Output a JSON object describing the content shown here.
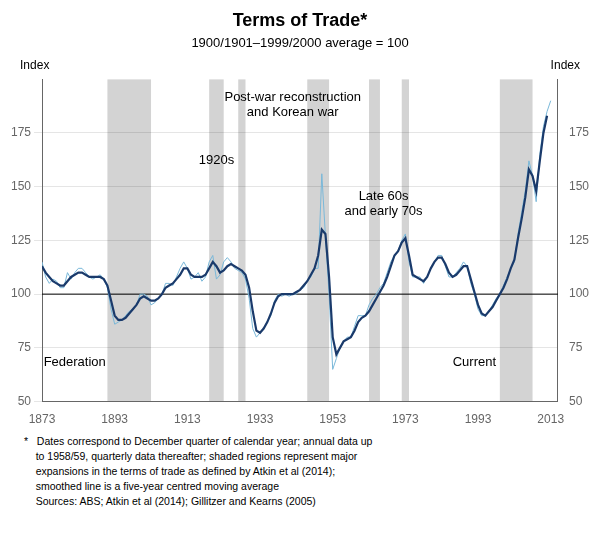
{
  "chart_data": {
    "type": "line",
    "title": "Terms of Trade*",
    "subtitle": "1900/1901–1999/2000 average = 100",
    "ylabel": "Index",
    "y2label": "Index",
    "xlim": [
      1873,
      2015
    ],
    "xticks": [
      1873,
      1893,
      1913,
      1933,
      1953,
      1973,
      1993,
      2013
    ],
    "ylim": [
      50,
      200
    ],
    "yticks": [
      50,
      75,
      100,
      125,
      150,
      175
    ],
    "y2lim": [
      50,
      200
    ],
    "y2ticks": [
      50,
      75,
      100,
      125,
      150,
      175
    ],
    "grid": "y",
    "shaded_regions": {
      "color": "#d3d3d3",
      "ranges": [
        [
          1891,
          1903
        ],
        [
          1919,
          1923
        ],
        [
          1927,
          1929
        ],
        [
          1946,
          1952
        ],
        [
          1963,
          1966
        ],
        [
          1972,
          1974
        ],
        [
          1999,
          2008
        ]
      ]
    },
    "hlines": [
      {
        "y": 100,
        "color": "#000000"
      }
    ],
    "annotations": [
      {
        "text": "Federation",
        "x": 1882,
        "y": 68
      },
      {
        "text": "1920s",
        "x": 1921,
        "y": 162
      },
      {
        "text": "Post-war reconstruction\nand Korean war",
        "x": 1942,
        "y": 188
      },
      {
        "text": "Late 60s\nand early 70s",
        "x": 1967,
        "y": 142
      },
      {
        "text": "Current",
        "x": 1992,
        "y": 68
      }
    ],
    "footnote": [
      "*   Dates correspond to December quarter of calendar year; annual data up",
      "    to 1958/59, quarterly data thereafter; shaded regions represent major",
      "    expansions in the terms of trade as defined by Atkin et al (2014);",
      "    smoothed line is a five-year centred moving average",
      "    Sources: ABS; Atkin et al (2014); Gillitzer and Kearns (2005)"
    ],
    "series": [
      {
        "color": "#7ab8d9",
        "x": [
          1873,
          1874,
          1875,
          1876,
          1877,
          1878,
          1879,
          1880,
          1881,
          1882,
          1883,
          1884,
          1885,
          1886,
          1887,
          1888,
          1889,
          1890,
          1891,
          1892,
          1893,
          1894,
          1895,
          1896,
          1897,
          1898,
          1899,
          1900,
          1901,
          1902,
          1903,
          1904,
          1905,
          1906,
          1907,
          1908,
          1909,
          1910,
          1911,
          1912,
          1913,
          1914,
          1915,
          1916,
          1917,
          1918,
          1919,
          1920,
          1921,
          1922,
          1923,
          1924,
          1925,
          1926,
          1927,
          1928,
          1929,
          1930,
          1931,
          1932,
          1933,
          1934,
          1935,
          1936,
          1937,
          1938,
          1939,
          1940,
          1941,
          1942,
          1943,
          1944,
          1945,
          1946,
          1947,
          1948,
          1949,
          1950,
          1951,
          1952,
          1953,
          1954,
          1955,
          1956,
          1957,
          1958,
          1959,
          1960,
          1961,
          1962,
          1963,
          1964,
          1965,
          1966,
          1967,
          1968,
          1969,
          1970,
          1971,
          1972,
          1973,
          1974,
          1975,
          1976,
          1977,
          1978,
          1979,
          1980,
          1981,
          1982,
          1983,
          1984,
          1985,
          1986,
          1987,
          1988,
          1989,
          1990,
          1991,
          1992,
          1993,
          1994,
          1995,
          1996,
          1997,
          1998,
          1999,
          2000,
          2001,
          2002,
          2003,
          2004,
          2005,
          2006,
          2007,
          2008,
          2009,
          2010,
          2011,
          2012,
          2013
        ],
        "values": [
          115,
          108,
          105,
          107,
          106,
          103,
          103,
          110,
          107,
          110,
          112,
          112,
          110,
          108,
          107,
          108,
          109,
          107,
          103,
          93,
          86,
          87,
          88,
          90,
          92,
          93,
          95,
          100,
          100,
          99,
          95,
          96,
          98,
          100,
          105,
          105,
          104,
          108,
          112,
          115,
          112,
          107,
          108,
          110,
          106,
          108,
          115,
          118,
          107,
          109,
          115,
          117,
          115,
          112,
          111,
          110,
          107,
          98,
          84,
          80,
          82,
          84,
          87,
          90,
          97,
          100,
          99,
          100,
          99,
          100,
          100,
          102,
          103,
          106,
          108,
          112,
          112,
          156,
          127,
          100,
          65,
          70,
          75,
          78,
          80,
          80,
          85,
          90,
          90,
          90,
          95,
          98,
          100,
          103,
          105,
          110,
          115,
          118,
          120,
          125,
          128,
          115,
          108,
          108,
          108,
          105,
          108,
          112,
          115,
          118,
          118,
          113,
          108,
          108,
          110,
          112,
          115,
          113,
          105,
          100,
          93,
          90,
          90,
          92,
          95,
          98,
          100,
          104,
          108,
          112,
          115,
          128,
          138,
          148,
          162,
          155,
          143,
          165,
          178,
          185,
          190
        ]
      },
      {
        "color": "#1a3a6b",
        "x": [
          1873,
          1874,
          1875,
          1876,
          1877,
          1878,
          1879,
          1880,
          1881,
          1882,
          1883,
          1884,
          1885,
          1886,
          1887,
          1888,
          1889,
          1890,
          1891,
          1892,
          1893,
          1894,
          1895,
          1896,
          1897,
          1898,
          1899,
          1900,
          1901,
          1902,
          1903,
          1904,
          1905,
          1906,
          1907,
          1908,
          1909,
          1910,
          1911,
          1912,
          1913,
          1914,
          1915,
          1916,
          1917,
          1918,
          1919,
          1920,
          1921,
          1922,
          1923,
          1924,
          1925,
          1926,
          1927,
          1928,
          1929,
          1930,
          1931,
          1932,
          1933,
          1934,
          1935,
          1936,
          1937,
          1938,
          1939,
          1940,
          1941,
          1942,
          1943,
          1944,
          1945,
          1946,
          1947,
          1948,
          1949,
          1950,
          1951,
          1952,
          1953,
          1954,
          1955,
          1956,
          1957,
          1958,
          1959,
          1960,
          1961,
          1962,
          1963,
          1964,
          1965,
          1966,
          1967,
          1968,
          1969,
          1970,
          1971,
          1972,
          1973,
          1974,
          1975,
          1976,
          1977,
          1978,
          1979,
          1980,
          1981,
          1982,
          1983,
          1984,
          1985,
          1986,
          1987,
          1988,
          1989,
          1990,
          1991,
          1992,
          1993,
          1994,
          1995,
          1996,
          1997,
          1998,
          1999,
          2000,
          2001,
          2002,
          2003,
          2004,
          2005,
          2006,
          2007,
          2008,
          2009,
          2010,
          2011,
          2012
        ],
        "values": [
          113,
          110,
          108,
          106,
          105,
          104,
          104,
          106,
          108,
          109,
          110,
          110,
          109,
          108,
          108,
          108,
          108,
          107,
          104,
          97,
          90,
          88,
          88,
          89,
          91,
          93,
          95,
          98,
          99,
          98,
          97,
          97,
          98,
          100,
          103,
          104,
          105,
          107,
          109,
          112,
          112,
          109,
          108,
          108,
          108,
          109,
          112,
          115,
          113,
          110,
          111,
          113,
          114,
          113,
          112,
          111,
          109,
          103,
          92,
          83,
          82,
          84,
          87,
          91,
          96,
          99,
          100,
          100,
          100,
          100,
          101,
          102,
          104,
          106,
          109,
          112,
          118,
          130,
          128,
          108,
          80,
          72,
          75,
          78,
          79,
          80,
          83,
          87,
          89,
          90,
          92,
          95,
          98,
          101,
          104,
          108,
          113,
          118,
          120,
          124,
          126,
          118,
          109,
          108,
          107,
          106,
          108,
          112,
          115,
          117,
          117,
          114,
          110,
          108,
          109,
          111,
          113,
          113,
          107,
          101,
          95,
          91,
          90,
          92,
          94,
          97,
          100,
          103,
          107,
          112,
          116,
          126,
          135,
          145,
          158,
          155,
          148,
          162,
          175,
          183
        ]
      }
    ]
  }
}
